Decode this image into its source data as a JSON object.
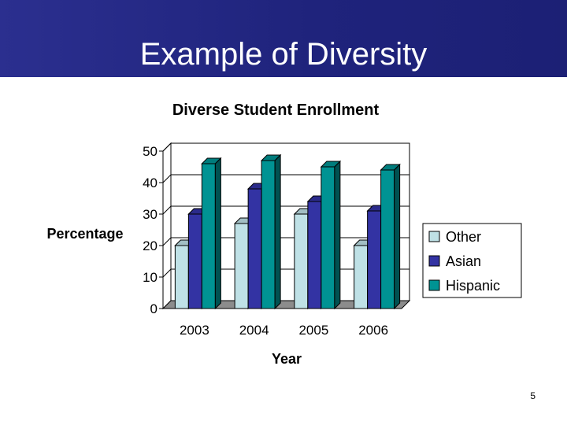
{
  "slide": {
    "title": "Example of Diversity",
    "page_number": "5"
  },
  "colors": {
    "Other": "#bfe1e6",
    "Asian": "#3333a3",
    "Hispanic": "#009393"
  },
  "chart_data": {
    "type": "bar",
    "title": "Diverse Student Enrollment",
    "xlabel": "Year",
    "ylabel": "Percentage",
    "categories": [
      "2003",
      "2004",
      "2005",
      "2006"
    ],
    "series": [
      {
        "name": "Other",
        "values": [
          20,
          27,
          30,
          20
        ]
      },
      {
        "name": "Asian",
        "values": [
          30,
          38,
          34,
          31
        ]
      },
      {
        "name": "Hispanic",
        "values": [
          46,
          47,
          45,
          44
        ]
      }
    ],
    "ylim": [
      0,
      50
    ],
    "yticks": [
      0,
      10,
      20,
      30,
      40,
      50
    ],
    "grid": true,
    "legend": "right",
    "style": "3d-clustered-column"
  }
}
